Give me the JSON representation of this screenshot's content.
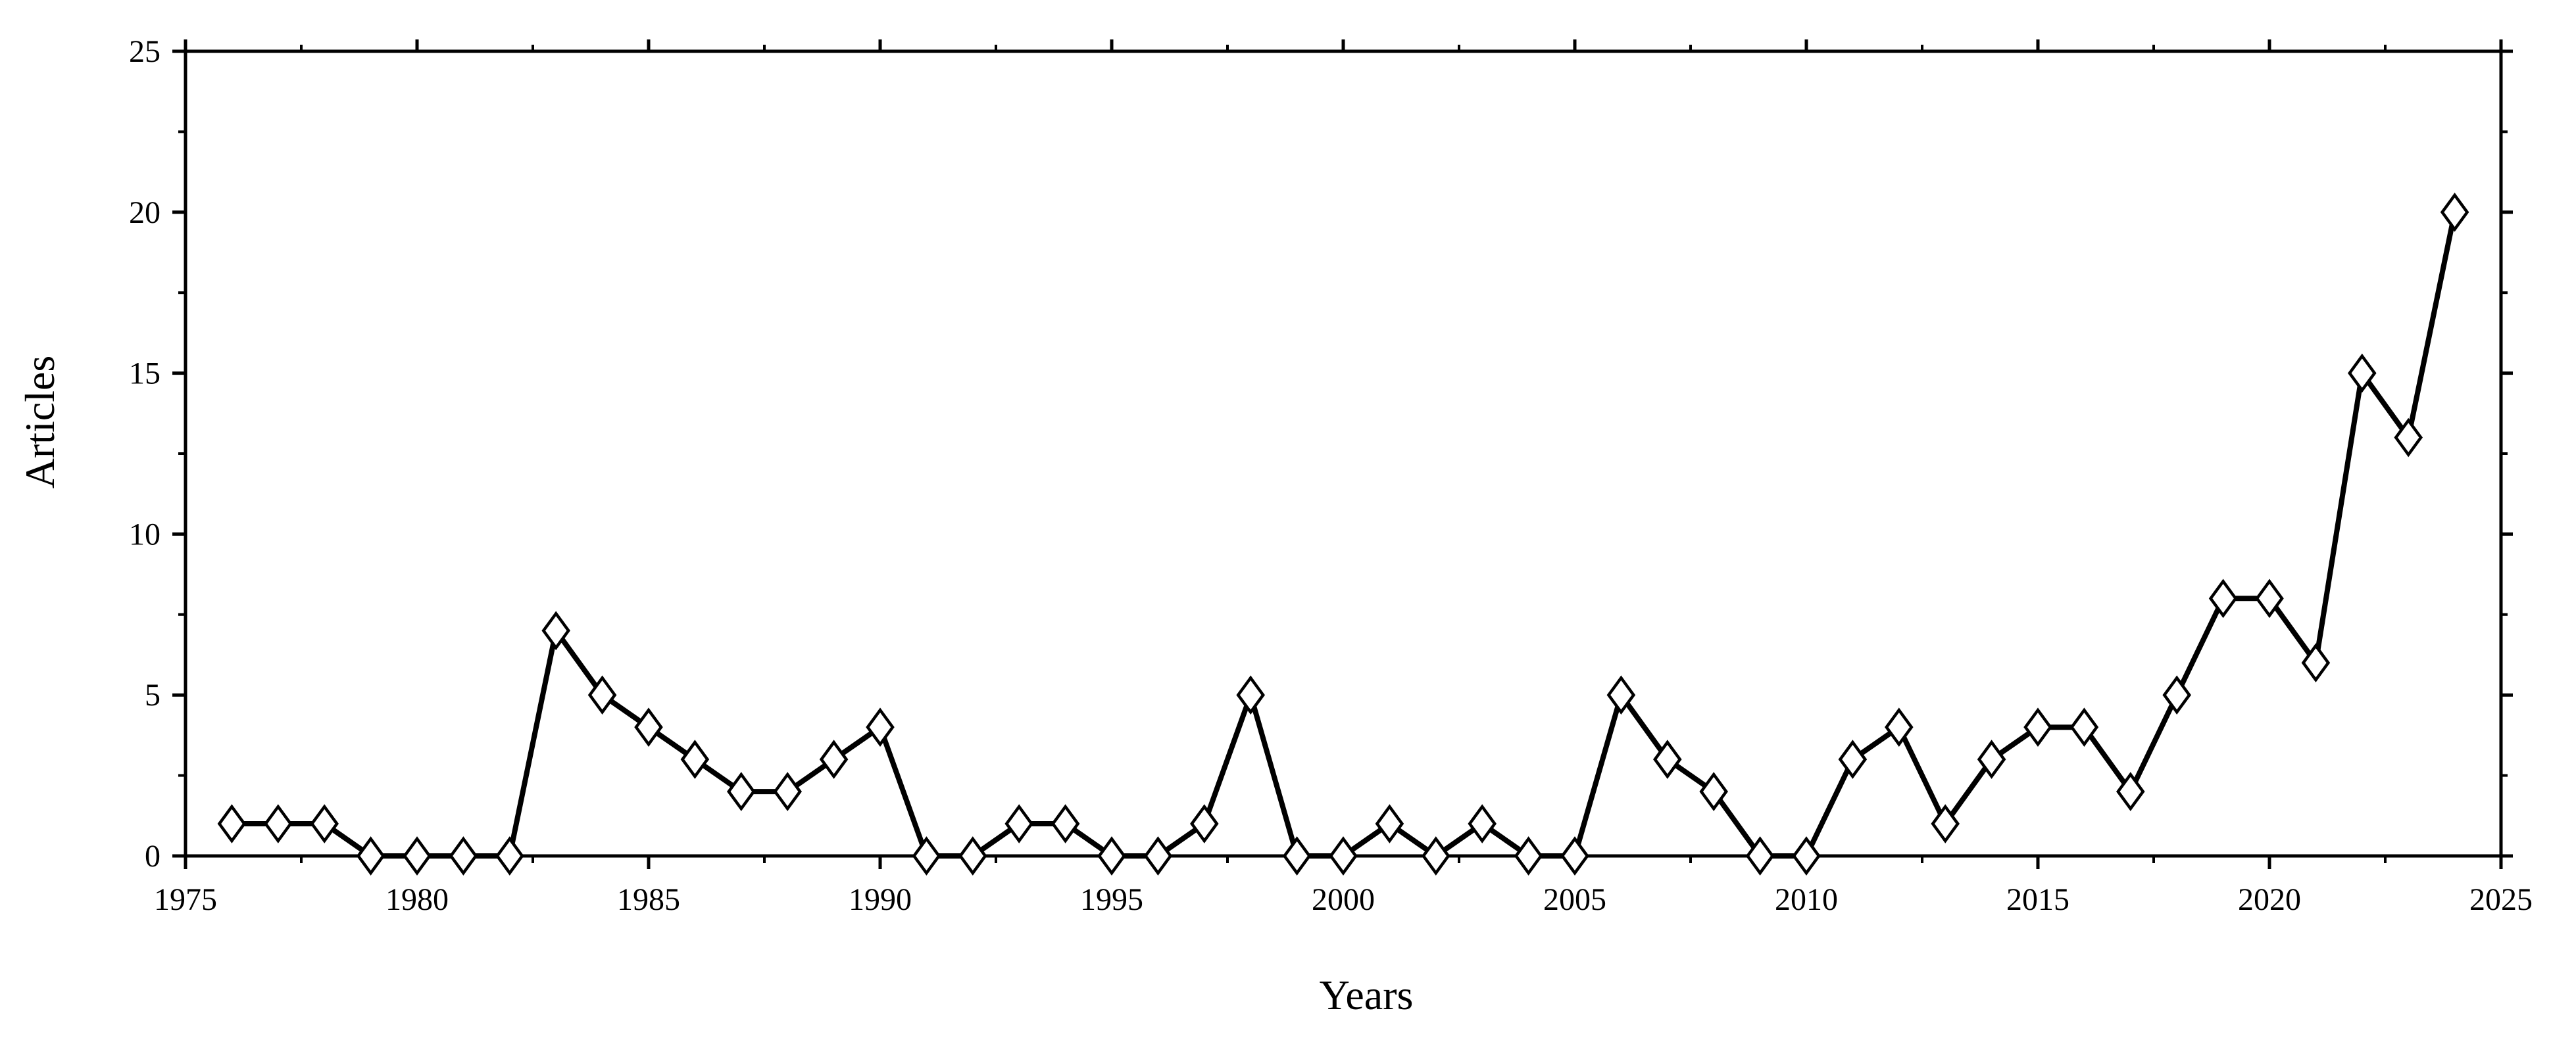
{
  "chart_data": {
    "type": "line",
    "xlabel": "Years",
    "ylabel": "Articles",
    "xlim": [
      1975,
      2025
    ],
    "ylim": [
      0,
      25
    ],
    "xticks": [
      1975,
      1980,
      1985,
      1990,
      1995,
      2000,
      2005,
      2010,
      2015,
      2020,
      2025
    ],
    "yticks": [
      0,
      5,
      10,
      15,
      20,
      25
    ],
    "grid": false,
    "legend": "none",
    "marker": "diamond-open",
    "colors": {
      "line": "#000000",
      "marker_fill": "#ffffff",
      "marker_edge": "#000000",
      "axes": "#000000"
    },
    "x": [
      1976,
      1977,
      1978,
      1979,
      1980,
      1981,
      1982,
      1983,
      1984,
      1985,
      1986,
      1987,
      1988,
      1989,
      1990,
      1991,
      1992,
      1993,
      1994,
      1995,
      1996,
      1997,
      1998,
      1999,
      2000,
      2001,
      2002,
      2003,
      2004,
      2005,
      2006,
      2007,
      2008,
      2009,
      2010,
      2011,
      2012,
      2013,
      2014,
      2015,
      2016,
      2017,
      2018,
      2019,
      2020,
      2021,
      2022,
      2023,
      2024
    ],
    "y": [
      1,
      1,
      1,
      0,
      0,
      0,
      0,
      7,
      5,
      4,
      3,
      2,
      2,
      3,
      4,
      0,
      0,
      1,
      1,
      0,
      0,
      1,
      5,
      0,
      0,
      1,
      0,
      1,
      0,
      0,
      5,
      3,
      2,
      0,
      0,
      3,
      4,
      1,
      3,
      4,
      4,
      2,
      5,
      8,
      8,
      6,
      15,
      13,
      20
    ]
  }
}
